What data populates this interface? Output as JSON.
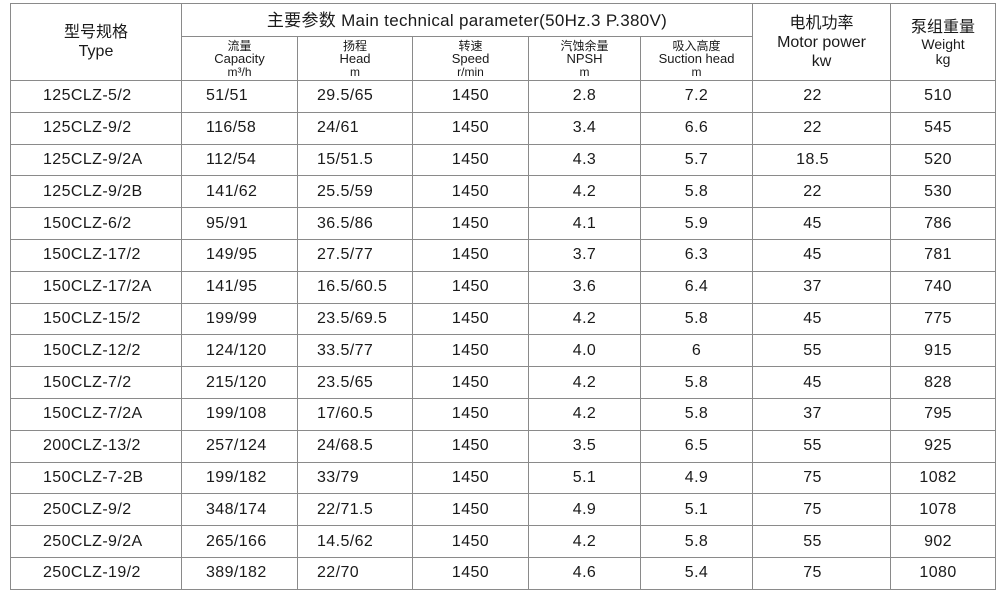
{
  "table": {
    "header": {
      "type": {
        "zh": "型号规格",
        "en": "Type"
      },
      "main": "主要参数 Main technical parameter(50Hz.3 P.380V)",
      "sub": [
        {
          "zh": "流量",
          "en": "Capacity",
          "unit": "m³/h"
        },
        {
          "zh": "扬程",
          "en": "Head",
          "unit": "m"
        },
        {
          "zh": "转速",
          "en": "Speed",
          "unit": "r/min"
        },
        {
          "zh": "汽蚀余量",
          "en": "NPSH",
          "unit": "m"
        },
        {
          "zh": "吸入高度",
          "en": "Suction head",
          "unit": "m"
        }
      ],
      "power": {
        "zh": "电机功率",
        "en": "Motor power",
        "unit": "kw"
      },
      "weight": {
        "zh": "泵组重量",
        "en": "Weight",
        "unit": "kg"
      }
    },
    "rows": [
      [
        "125CLZ-5/2",
        "51/51",
        "29.5/65",
        "1450",
        "2.8",
        "7.2",
        "22",
        "510"
      ],
      [
        "125CLZ-9/2",
        "116/58",
        "24/61",
        "1450",
        "3.4",
        "6.6",
        "22",
        "545"
      ],
      [
        "125CLZ-9/2A",
        "112/54",
        "15/51.5",
        "1450",
        "4.3",
        "5.7",
        "18.5",
        "520"
      ],
      [
        "125CLZ-9/2B",
        "141/62",
        "25.5/59",
        "1450",
        "4.2",
        "5.8",
        "22",
        "530"
      ],
      [
        "150CLZ-6/2",
        "95/91",
        "36.5/86",
        "1450",
        "4.1",
        "5.9",
        "45",
        "786"
      ],
      [
        "150CLZ-17/2",
        "149/95",
        "27.5/77",
        "1450",
        "3.7",
        "6.3",
        "45",
        "781"
      ],
      [
        "150CLZ-17/2A",
        "141/95",
        "16.5/60.5",
        "1450",
        "3.6",
        "6.4",
        "37",
        "740"
      ],
      [
        "150CLZ-15/2",
        "199/99",
        "23.5/69.5",
        "1450",
        "4.2",
        "5.8",
        "45",
        "775"
      ],
      [
        "150CLZ-12/2",
        "124/120",
        "33.5/77",
        "1450",
        "4.0",
        "6",
        "55",
        "915"
      ],
      [
        "150CLZ-7/2",
        "215/120",
        "23.5/65",
        "1450",
        "4.2",
        "5.8",
        "45",
        "828"
      ],
      [
        "150CLZ-7/2A",
        "199/108",
        "17/60.5",
        "1450",
        "4.2",
        "5.8",
        "37",
        "795"
      ],
      [
        "200CLZ-13/2",
        "257/124",
        "24/68.5",
        "1450",
        "3.5",
        "6.5",
        "55",
        "925"
      ],
      [
        "150CLZ-7-2B",
        "199/182",
        "33/79",
        "1450",
        "5.1",
        "4.9",
        "75",
        "1082"
      ],
      [
        "250CLZ-9/2",
        "348/174",
        "22/71.5",
        "1450",
        "4.9",
        "5.1",
        "75",
        "1078"
      ],
      [
        "250CLZ-9/2A",
        "265/166",
        "14.5/62",
        "1450",
        "4.2",
        "5.8",
        "55",
        "902"
      ],
      [
        "250CLZ-19/2",
        "389/182",
        "22/70",
        "1450",
        "4.6",
        "5.4",
        "75",
        "1080"
      ]
    ]
  }
}
